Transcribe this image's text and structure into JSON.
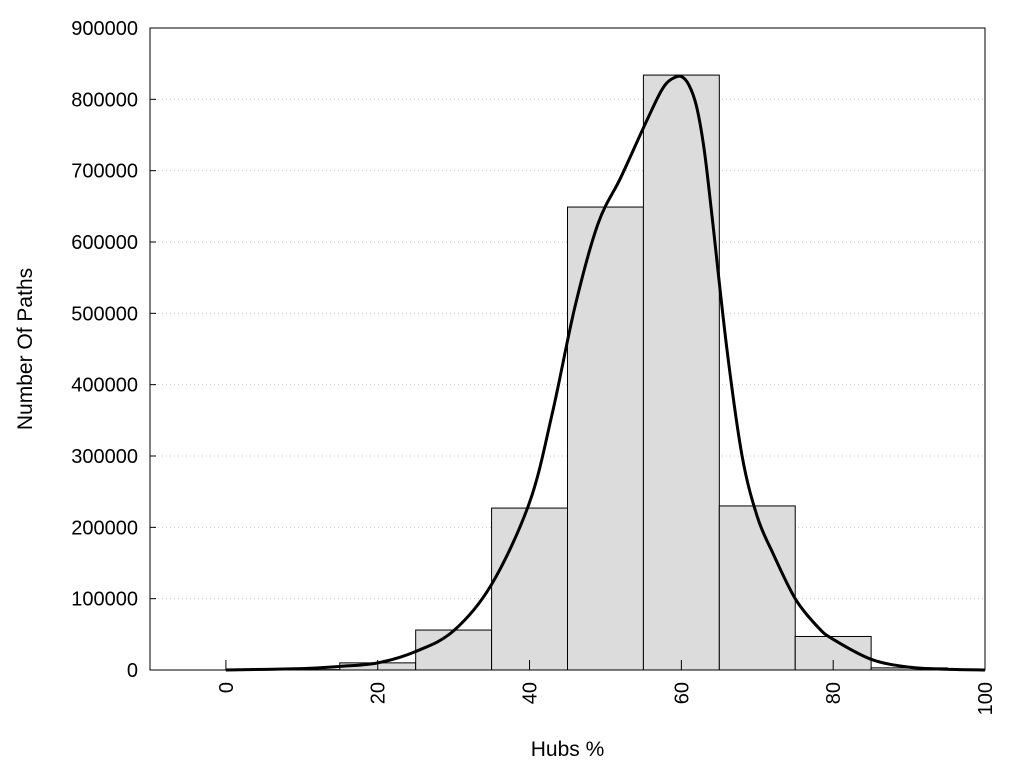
{
  "chart_data": {
    "type": "bar",
    "title": "",
    "xlabel": "Hubs %",
    "ylabel": "Number Of Paths",
    "xlim": [
      -10,
      100
    ],
    "ylim": [
      0,
      900000
    ],
    "xticks": [
      0,
      20,
      40,
      60,
      80,
      100
    ],
    "yticks": [
      0,
      100000,
      200000,
      300000,
      400000,
      500000,
      600000,
      700000,
      800000,
      900000
    ],
    "grid": "horizontal-dotted",
    "bar_color": "#dcdcdc",
    "bins": [
      {
        "x0": 0,
        "x1": 5,
        "value": 1000
      },
      {
        "x0": 5,
        "x1": 15,
        "value": 500
      },
      {
        "x0": 15,
        "x1": 25,
        "value": 10000
      },
      {
        "x0": 25,
        "x1": 35,
        "value": 56000
      },
      {
        "x0": 35,
        "x1": 45,
        "value": 227000
      },
      {
        "x0": 45,
        "x1": 55,
        "value": 649000
      },
      {
        "x0": 55,
        "x1": 65,
        "value": 834000
      },
      {
        "x0": 65,
        "x1": 75,
        "value": 230000
      },
      {
        "x0": 75,
        "x1": 85,
        "value": 47000
      },
      {
        "x0": 85,
        "x1": 95,
        "value": 3000
      },
      {
        "x0": 95,
        "x1": 100,
        "value": 1000
      }
    ],
    "curve": {
      "x": [
        0,
        10,
        15,
        20,
        25,
        30,
        35,
        40,
        43,
        46,
        49,
        52,
        55,
        57,
        58,
        59,
        60,
        61,
        62,
        63,
        64,
        66,
        68,
        70,
        72,
        75,
        78,
        80,
        85,
        90,
        95,
        100
      ],
      "y": [
        0,
        2000,
        5000,
        10000,
        26000,
        55000,
        120000,
        235000,
        360000,
        510000,
        625000,
        690000,
        760000,
        805000,
        822000,
        830000,
        832000,
        820000,
        790000,
        730000,
        640000,
        450000,
        300000,
        215000,
        165000,
        100000,
        60000,
        43000,
        15000,
        4000,
        1000,
        0
      ]
    }
  }
}
